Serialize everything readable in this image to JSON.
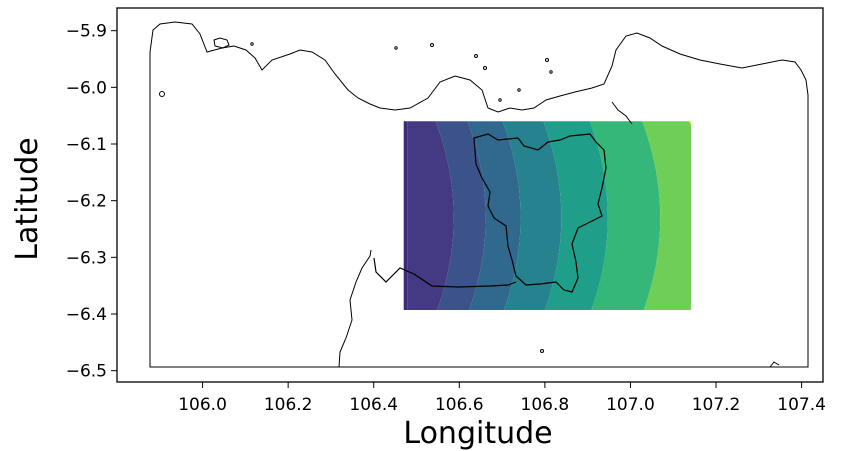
{
  "map": {
    "xlabel": "Longitude",
    "ylabel": "Latitude",
    "x_ticks": [
      "106.0",
      "106.2",
      "106.4",
      "106.6",
      "106.8",
      "107.0",
      "107.2",
      "107.4"
    ],
    "y_ticks": [
      "−5.9",
      "−6.0",
      "−6.1",
      "−6.2",
      "−6.3",
      "−6.4",
      "−6.5"
    ],
    "xlim": [
      105.8,
      107.45
    ],
    "ylim": [
      -6.52,
      -5.86
    ],
    "colors": {
      "coastline": "#000000",
      "frame": "#000000",
      "contour_bands": [
        "#3e2a78",
        "#443a83",
        "#3b528b",
        "#31688e",
        "#26828e",
        "#1f9e89",
        "#35b779",
        "#6ece58",
        "#b5de2b",
        "#fde725"
      ]
    },
    "contour_field": {
      "colormap": "viridis",
      "extent": {
        "lon": [
          106.47,
          107.15
        ],
        "lat": [
          -6.4,
          -6.06
        ]
      }
    }
  }
}
